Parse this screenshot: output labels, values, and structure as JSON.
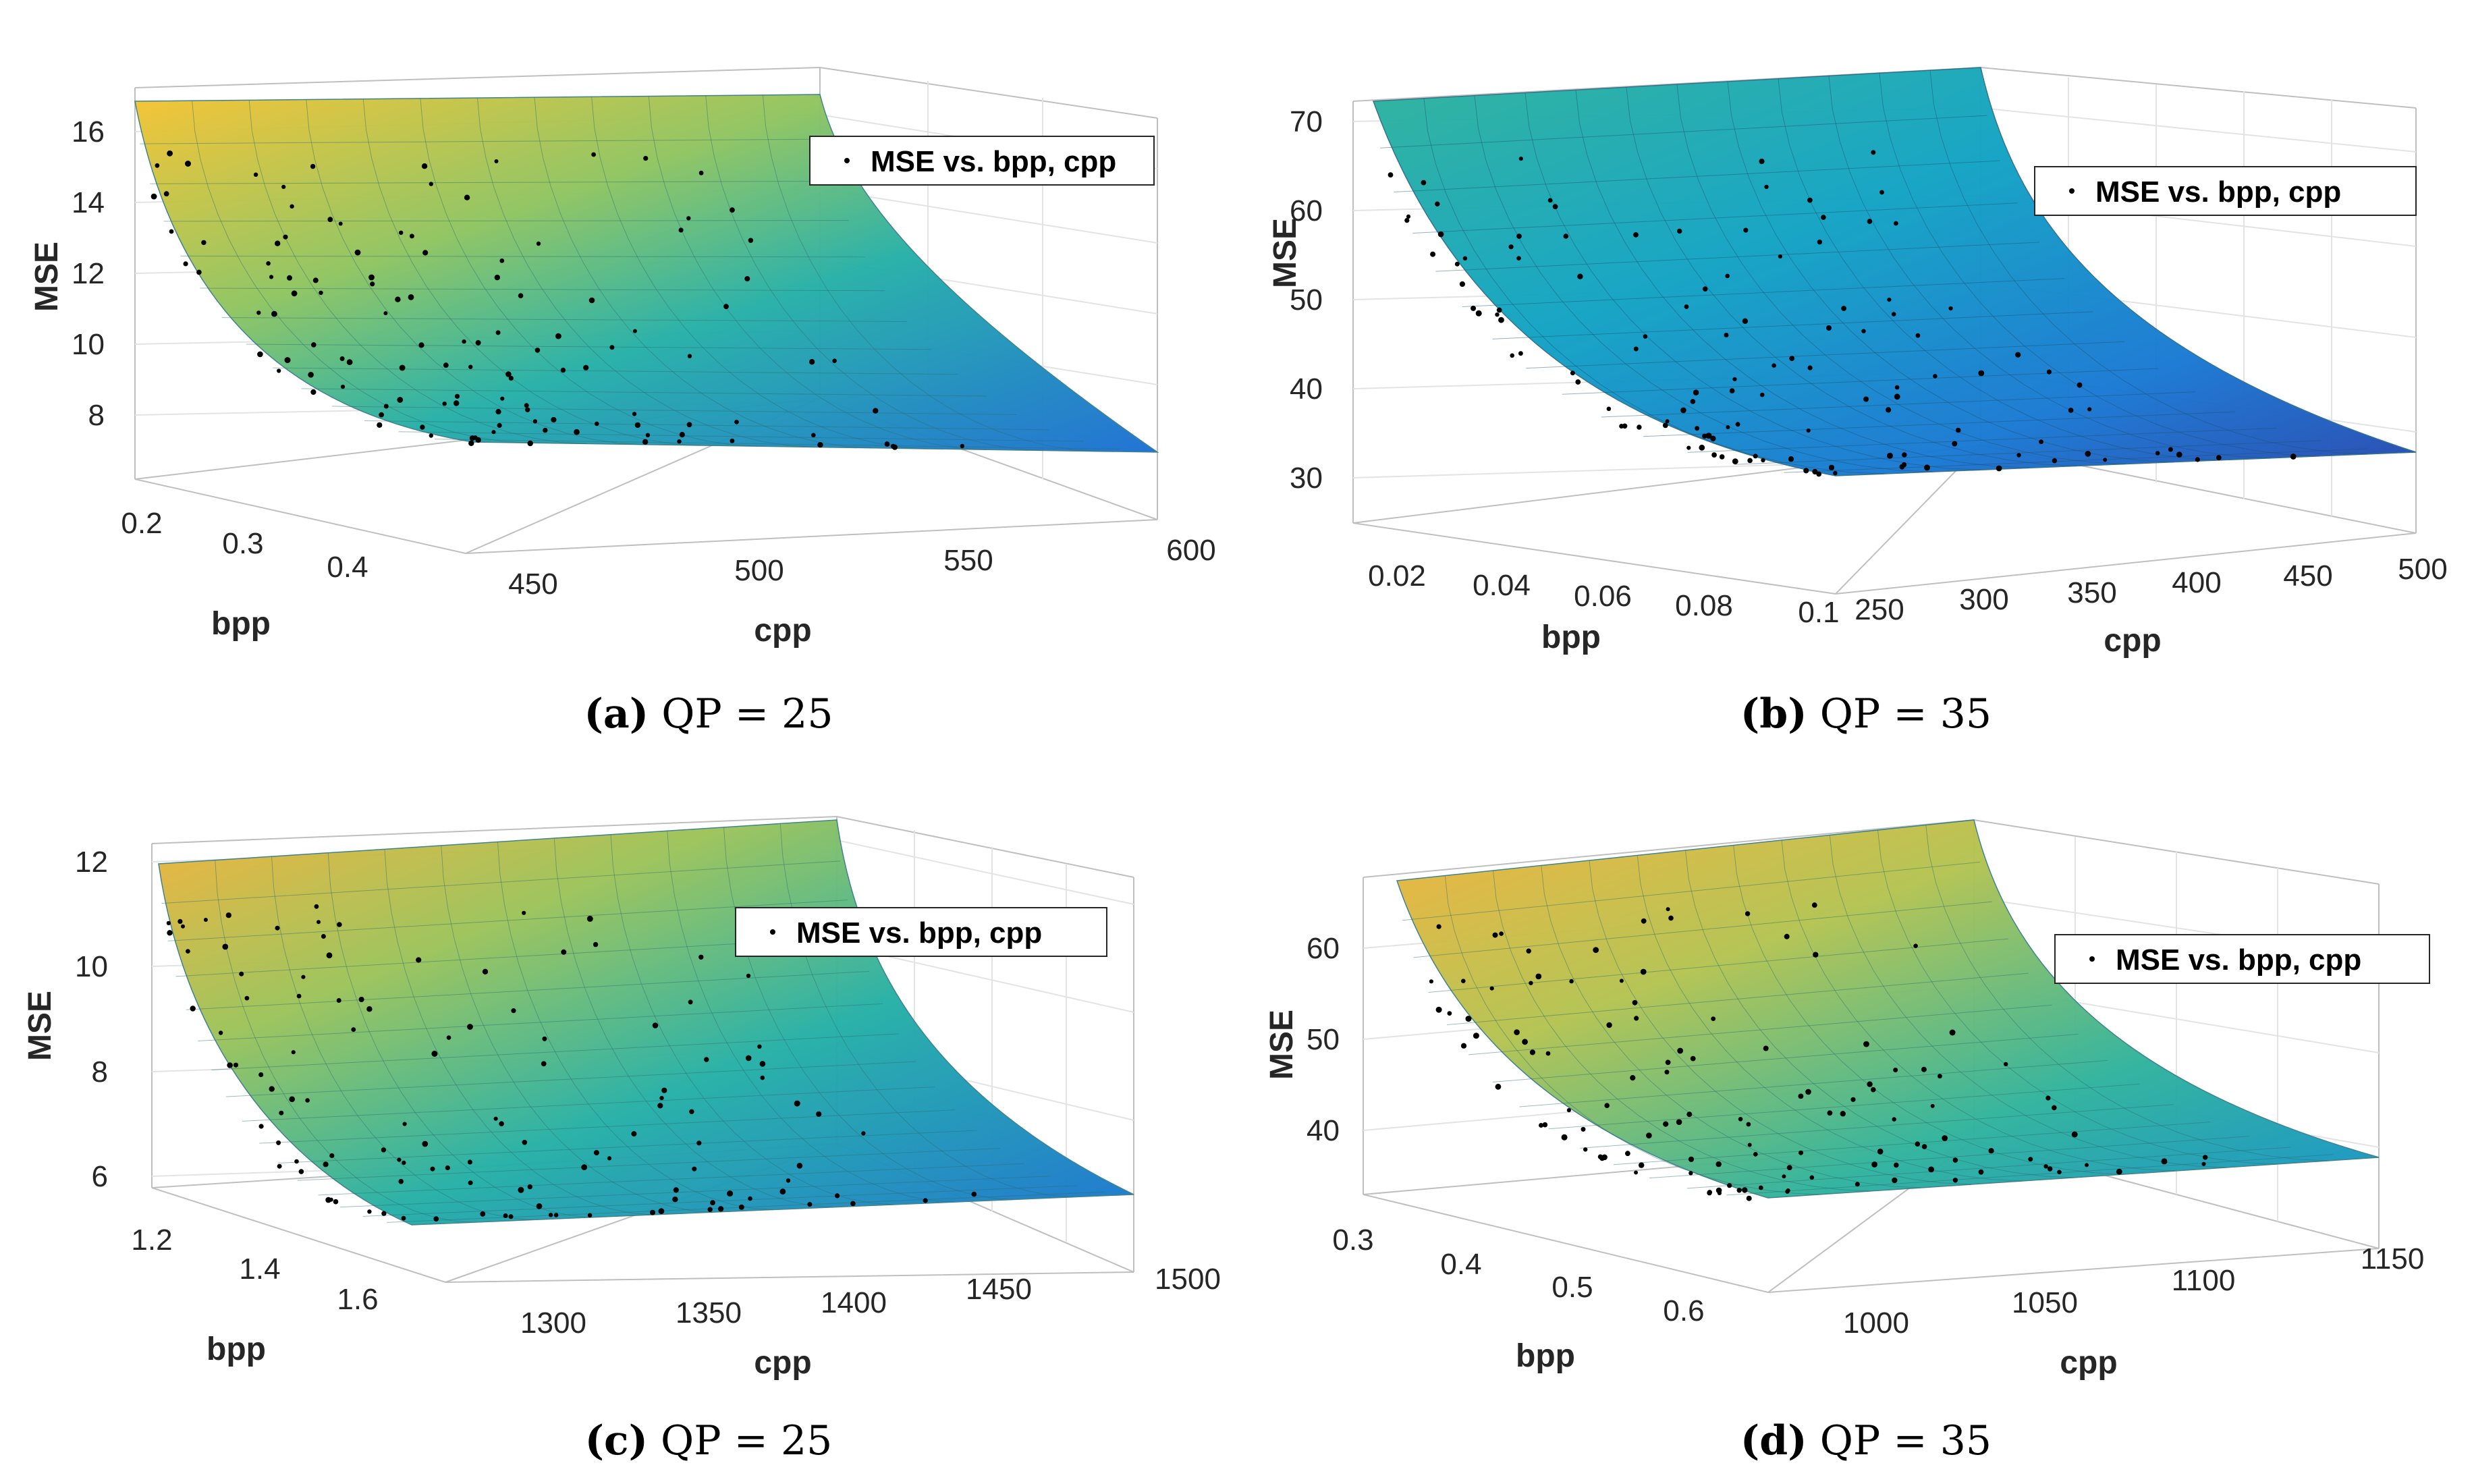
{
  "colors": {
    "low": "#1f6bd1",
    "mid": "#1aa9b8",
    "high": "#f5c330",
    "gridline": "#d9d9d9",
    "axis": "#262626",
    "points": "#000000"
  },
  "chart_data": [
    {
      "type": "surface",
      "caption_letter": "(a)",
      "caption_text": " QP = 25",
      "xlabel": "cpp",
      "ylabel": "bpp",
      "zlabel": "MSE",
      "x_ticks": [
        "450",
        "500",
        "550",
        "600"
      ],
      "y_ticks": [
        "0.2",
        "0.3",
        "0.4"
      ],
      "z_ticks": [
        "8",
        "10",
        "12",
        "14",
        "16"
      ],
      "xlim": [
        440,
        600
      ],
      "ylim": [
        0.17,
        0.47
      ],
      "zlim": [
        6.5,
        17.5
      ],
      "legend": "MSE vs. bpp, cpp",
      "surface_trend": "MSE decreases with increasing bpp and cpp",
      "surface_z_range": [
        7.1,
        16.8
      ],
      "scatter_z_range": [
        7.2,
        15.0
      ]
    },
    {
      "type": "surface",
      "caption_letter": "(b)",
      "caption_text": " QP = 35",
      "xlabel": "cpp",
      "ylabel": "bpp",
      "zlabel": "MSE",
      "x_ticks": [
        "250",
        "300",
        "350",
        "400",
        "450",
        "500"
      ],
      "y_ticks": [
        "0.02",
        "0.04",
        "0.06",
        "0.08",
        "0.1"
      ],
      "z_ticks": [
        "30",
        "40",
        "50",
        "60",
        "70"
      ],
      "xlim": [
        220,
        500
      ],
      "ylim": [
        0.01,
        0.1
      ],
      "zlim": [
        28,
        74
      ],
      "legend": "MSE vs. bpp, cpp",
      "surface_trend": "MSE decreases with increasing bpp and cpp",
      "surface_z_range": [
        30,
        72
      ],
      "scatter_z_range": [
        35,
        71
      ]
    },
    {
      "type": "surface",
      "caption_letter": "(c)",
      "caption_text": " QP = 25",
      "xlabel": "cpp",
      "ylabel": "bpp",
      "zlabel": "MSE",
      "x_ticks": [
        "1300",
        "1350",
        "1400",
        "1450",
        "1500"
      ],
      "y_ticks": [
        "1.2",
        "1.4",
        "1.6"
      ],
      "z_ticks": [
        "6",
        "8",
        "10",
        "12"
      ],
      "xlim": [
        1280,
        1500
      ],
      "ylim": [
        1.12,
        1.72
      ],
      "zlim": [
        5.4,
        12.4
      ],
      "legend": "MSE vs. bpp, cpp",
      "surface_trend": "MSE decreases with increasing bpp and cpp",
      "surface_z_range": [
        5.5,
        12.0
      ],
      "scatter_z_range": [
        5.6,
        11.8
      ]
    },
    {
      "type": "surface",
      "caption_letter": "(d)",
      "caption_text": " QP = 35",
      "xlabel": "cpp",
      "ylabel": "bpp",
      "zlabel": "MSE",
      "x_ticks": [
        "1000",
        "1050",
        "1100",
        "1150"
      ],
      "y_ticks": [
        "0.3",
        "0.4",
        "0.5",
        "0.6"
      ],
      "z_ticks": [
        "40",
        "50",
        "60"
      ],
      "xlim": [
        980,
        1150
      ],
      "ylim": [
        0.28,
        0.68
      ],
      "zlim": [
        31,
        68
      ],
      "legend": "MSE vs. bpp, cpp",
      "surface_trend": "MSE decreases with increasing bpp and cpp",
      "surface_z_range": [
        33,
        66
      ],
      "scatter_z_range": [
        35,
        65
      ]
    }
  ]
}
